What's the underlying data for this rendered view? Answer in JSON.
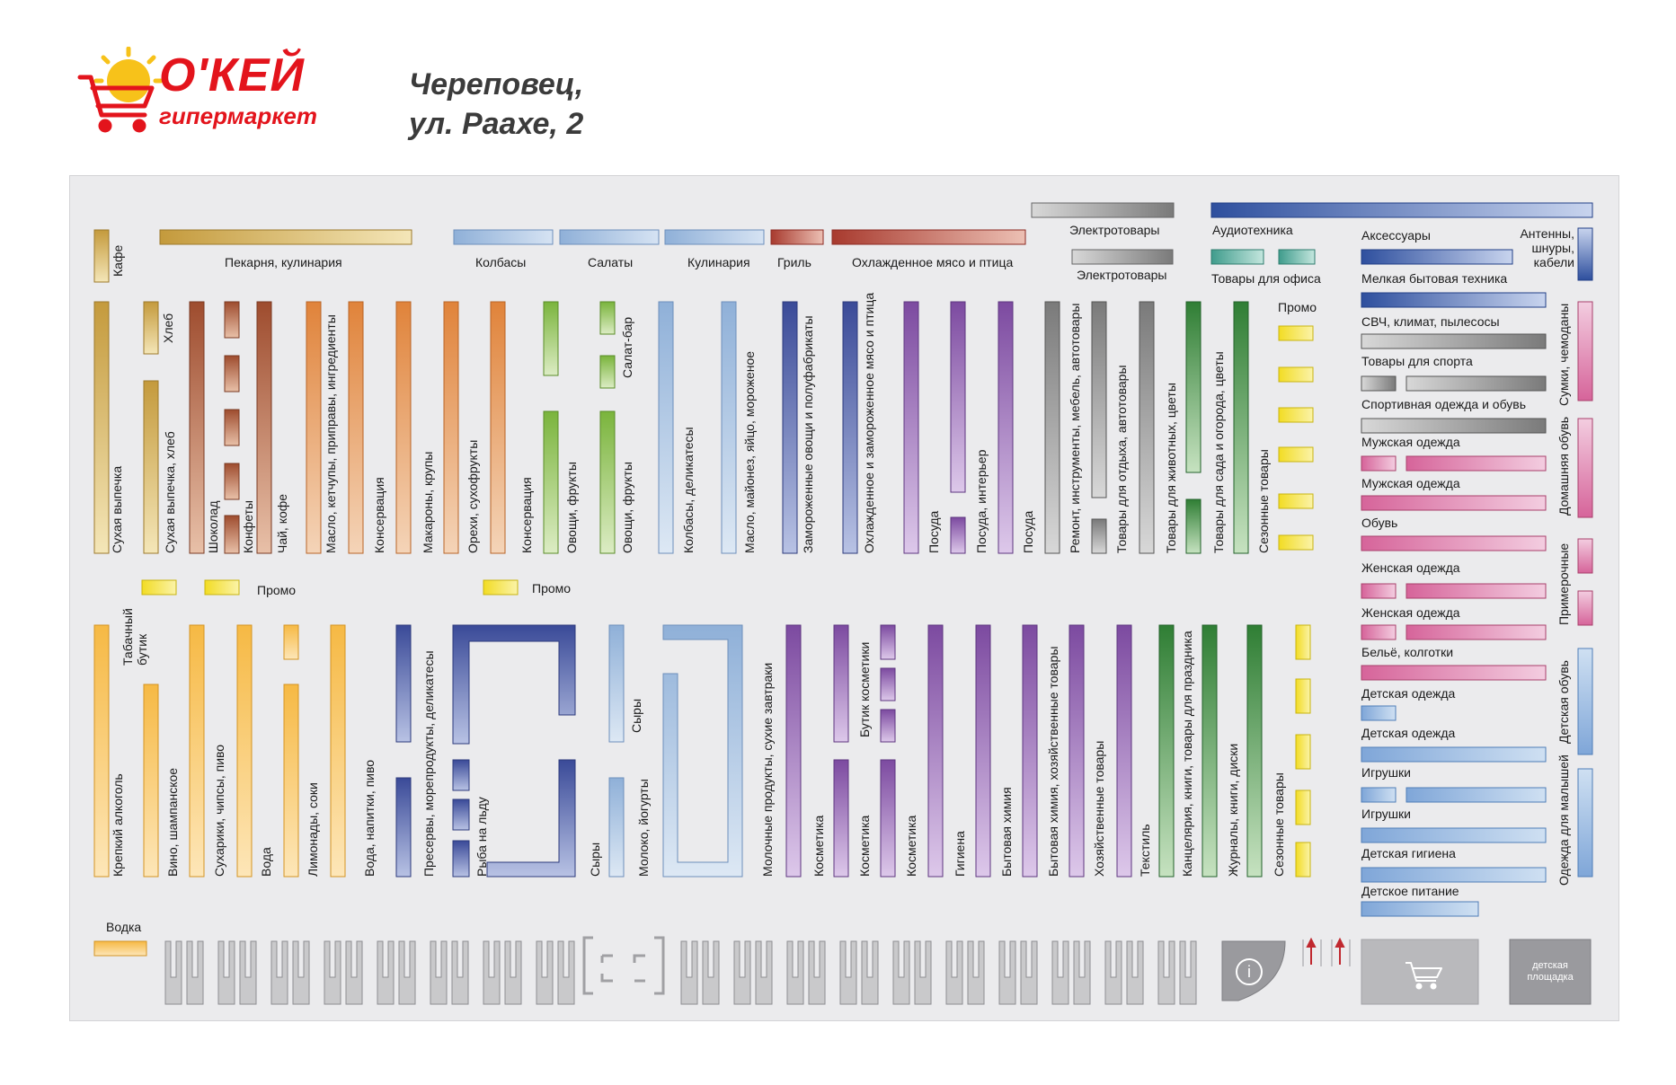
{
  "header": {
    "logo_name": "О'КЕЙ",
    "logo_sub": "гипермаркет",
    "city_line1": "Череповец,",
    "city_line2": "ул. Раахе, 2"
  },
  "colors": {
    "plan_background": "#ebebed",
    "bakery": "#c9a24b",
    "deli_blue": "#9bb6d8",
    "meat_red": "#b5423a",
    "orange": "#e08a45",
    "brown": "#a85a3a",
    "green": "#7ab43c",
    "dark_green": "#3d8a3a",
    "navy": "#3f4f9a",
    "purple": "#8a5aa8",
    "grey": "#8c8c8c",
    "pink": "#d86a9a",
    "yellow": "#f5e640",
    "light_orange": "#f6c35a",
    "light_blue": "#7fa6d8",
    "dark_blue": "#2e4f9e",
    "teal": "#4aa898",
    "arrow_red": "#c0282f"
  },
  "top_labels": {
    "cafe": "Кафе",
    "bakery": "Пекарня, кулинария",
    "sausages": "Колбасы",
    "salads": "Салаты",
    "culinary": "Кулинария",
    "grill": "Гриль",
    "chilled_meat": "Охлажденное мясо и птица",
    "electro1": "Электротовары",
    "electro2": "Электротовары",
    "audio": "Аудиотехника",
    "office": "Товары для офиса",
    "promo_right": "Промо"
  },
  "upper_aisles": {
    "bread": "Хлеб",
    "dry_bakery": "Сухая выпечка",
    "dry_bakery_bread": "Сухая выпечка, хлеб",
    "chocolate": "Шоколад",
    "sweets": "Конфеты",
    "tea_coffee": "Чай, кофе",
    "oil_sauces": "Масло, кетчупы, приправы, ингредиенты",
    "canned1": "Консервация",
    "pasta": "Макароны, крупы",
    "nuts": "Орехи, сухофрукты",
    "canned2": "Консервация",
    "veg1": "Овощи, фрукты",
    "veg2": "Овощи, фрукты",
    "salad_bar": "Салат-бар",
    "sausage_deli": "Колбасы, деликатесы",
    "butter_ice": "Масло, майонез, яйцо, мороженое",
    "frozen_veg": "Замороженные овощи и полуфабрикаты",
    "chilled_frozen_meat": "Охлажденное и замороженное мясо и птица",
    "dishes1": "Посуда",
    "dishes_interior": "Посуда, интерьер",
    "dishes2": "Посуда",
    "repair": "Ремонт, инструменты, мебель, автотовары",
    "leisure_auto": "Товары для отдыха, автотовары",
    "pets_flowers": "Товары для животных,  цветы",
    "garden_flowers": "Товары для сада и огорода,  цветы",
    "seasonal1": "Сезонные товары"
  },
  "promo_row": {
    "promo1": "Промо",
    "promo2": "Промо"
  },
  "lower_aisles": {
    "tobacco": "Табачный бутик",
    "strong_alcohol": "Крепкий алкоголь",
    "wine": "Вино, шампанское",
    "snacks_beer": "Сухарики, чипсы, пиво",
    "water1": "Вода",
    "lemonades": "Лимонады, соки",
    "water_drinks_beer": "Вода, напитки, пиво",
    "preserves": "Пресервы, морепродукты, деликатесы",
    "fish_ice": "Рыба на льду",
    "cheese1": "Сыры",
    "cheese2": "Сыры",
    "milk": "Молоко, йогурты",
    "dairy_breakfast": "Молочные продукты,  сухие завтраки",
    "cosmetics1": "Косметика",
    "cosmetics2": "Косметика",
    "cosmetics_boutique": "Бутик косметики",
    "cosmetics3": "Косметика",
    "hygiene": "Гигиена",
    "household_chem": "Бытовая химия",
    "household_chem_goods": "Бытовая химия, хозяйственные товары",
    "household_goods": "Хозяйственные товары",
    "textile": "Текстиль",
    "stationery": "Канцелярия, книги, товары для праздника",
    "magazines": "Журналы, книги, диски",
    "seasonal2": "Сезонные товары",
    "vodka": "Водка"
  },
  "right_labels": {
    "accessories": "Аксессуары",
    "antennas": "Антенны, шнуры, кабели",
    "small_appliances": "Мелкая бытовая техника",
    "microwave": "СВЧ, климат, пылесосы",
    "sport_goods": "Товары для спорта",
    "sport_wear": "Спортивная одежда и обувь",
    "bags": "Сумки, чемоданы",
    "men1": "Мужская одежда",
    "men2": "Мужская одежда",
    "home_shoes": "Домашняя обувь",
    "shoes": "Обувь",
    "women1": "Женская одежда",
    "fitting": "Примерочные",
    "women2": "Женская одежда",
    "lingerie": "Бельё, колготки",
    "kids_wear1": "Детская одежда",
    "kids_wear2": "Детская одежда",
    "kids_shoes": "Детская обувь",
    "toys1": "Игрушки",
    "toys2": "Игрушки",
    "baby_wear": "Одежда для малышей",
    "kids_hygiene": "Детская гигиена",
    "baby_food": "Детское питание"
  },
  "bottom": {
    "info_symbol": "i",
    "kids_area": "детская площадка"
  }
}
